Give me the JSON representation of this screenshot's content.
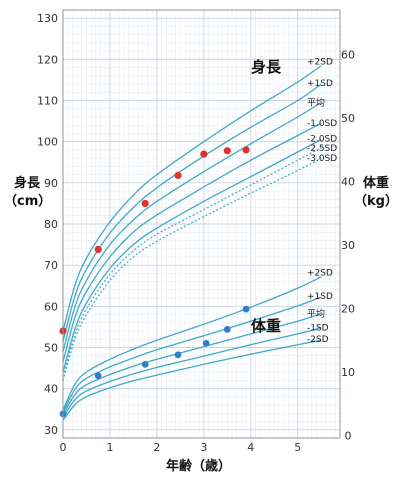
{
  "chart_data": {
    "type": "line",
    "title": "",
    "xlabel": "年齢（歳）",
    "xlim": [
      0,
      5.9
    ],
    "x_ticks": [
      "0",
      "1",
      "2",
      "3",
      "4",
      "5"
    ],
    "grid": true,
    "height": {
      "panel_title": "身長",
      "ylabel": "身長\n（cm）",
      "ylim": [
        28,
        132
      ],
      "y_ticks": [
        "30",
        "40",
        "50",
        "60",
        "70",
        "80",
        "90",
        "100",
        "110",
        "120",
        "130"
      ],
      "x": [
        0,
        0.25,
        0.5,
        1,
        1.5,
        2,
        3,
        4,
        5,
        5.5
      ],
      "series": [
        {
          "name": "+2SD",
          "style": "solid",
          "values": [
            54.0,
            64.9,
            71.7,
            80.5,
            87.0,
            92.0,
            100.0,
            107.5,
            114.5,
            118.5
          ]
        },
        {
          "name": "+1SD",
          "style": "solid",
          "values": [
            51.5,
            62.3,
            69.0,
            77.8,
            84.0,
            88.8,
            96.5,
            103.5,
            110.0,
            114.0
          ]
        },
        {
          "name": "平均",
          "style": "solid",
          "values": [
            49.0,
            59.7,
            66.3,
            75.0,
            81.0,
            85.5,
            92.7,
            99.5,
            106.0,
            109.5
          ]
        },
        {
          "name": "-1.0SD",
          "style": "solid",
          "values": [
            46.5,
            57.1,
            63.6,
            72.0,
            78.0,
            82.2,
            89.0,
            95.5,
            101.5,
            104.5
          ]
        },
        {
          "name": "-2.0SD",
          "style": "solid",
          "values": [
            44.0,
            54.3,
            60.8,
            69.2,
            75.0,
            79.0,
            85.5,
            91.5,
            97.5,
            100.5
          ]
        },
        {
          "name": "-2.5SD",
          "style": "dotted",
          "values": [
            43.0,
            53.0,
            59.4,
            67.8,
            73.5,
            77.5,
            83.5,
            89.5,
            95.5,
            98.5
          ]
        },
        {
          "name": "-3.0SD",
          "style": "dotted",
          "values": [
            42.0,
            51.8,
            58.0,
            66.3,
            72.0,
            75.8,
            81.8,
            87.5,
            93.0,
            96.0
          ]
        }
      ],
      "points": [
        {
          "x": 0.0,
          "y": 54
        },
        {
          "x": 0.75,
          "y": 73.8
        },
        {
          "x": 1.75,
          "y": 85
        },
        {
          "x": 2.45,
          "y": 91.8
        },
        {
          "x": 3.0,
          "y": 97
        },
        {
          "x": 3.5,
          "y": 97.8
        },
        {
          "x": 3.9,
          "y": 98
        }
      ]
    },
    "weight": {
      "panel_title": "体重",
      "ylabel": "体重\n（kg）",
      "ylim": [
        -0.4,
        67
      ],
      "y_ticks": [
        "0",
        "10",
        "20",
        "30",
        "40",
        "50",
        "60"
      ],
      "x": [
        0,
        0.25,
        0.5,
        1,
        1.5,
        2,
        3,
        4,
        5,
        5.5
      ],
      "series": [
        {
          "name": "+2SD",
          "style": "solid",
          "values": [
            4.0,
            8.0,
            10.0,
            12.0,
            13.6,
            15.0,
            17.5,
            20.2,
            23.2,
            25.0
          ]
        },
        {
          "name": "+1SD",
          "style": "solid",
          "values": [
            3.6,
            7.2,
            9.0,
            10.8,
            12.2,
            13.5,
            15.7,
            18.0,
            20.4,
            21.8
          ]
        },
        {
          "name": "平均",
          "style": "solid",
          "values": [
            3.2,
            6.4,
            8.0,
            9.6,
            10.9,
            12.0,
            14.0,
            16.0,
            18.0,
            19.2
          ]
        },
        {
          "name": "-1SD",
          "style": "solid",
          "values": [
            2.8,
            5.6,
            7.0,
            8.5,
            9.7,
            10.7,
            12.5,
            14.3,
            16.0,
            17.0
          ]
        },
        {
          "name": "-2SD",
          "style": "solid",
          "values": [
            2.4,
            4.8,
            6.1,
            7.5,
            8.6,
            9.5,
            11.2,
            12.8,
            14.3,
            15.0
          ]
        }
      ],
      "points": [
        {
          "x": 0.0,
          "y": 3.4
        },
        {
          "x": 0.75,
          "y": 9.4
        },
        {
          "x": 1.75,
          "y": 11.2
        },
        {
          "x": 2.45,
          "y": 12.7
        },
        {
          "x": 3.05,
          "y": 14.5
        },
        {
          "x": 3.5,
          "y": 16.7
        },
        {
          "x": 3.9,
          "y": 19.9
        }
      ]
    },
    "colors": {
      "curve": "#3fa9c9",
      "grid_major": "#c9d2dd",
      "grid_minor": "#e6ebf0",
      "height_point": "#e03030",
      "weight_point": "#2f7fc7"
    }
  }
}
